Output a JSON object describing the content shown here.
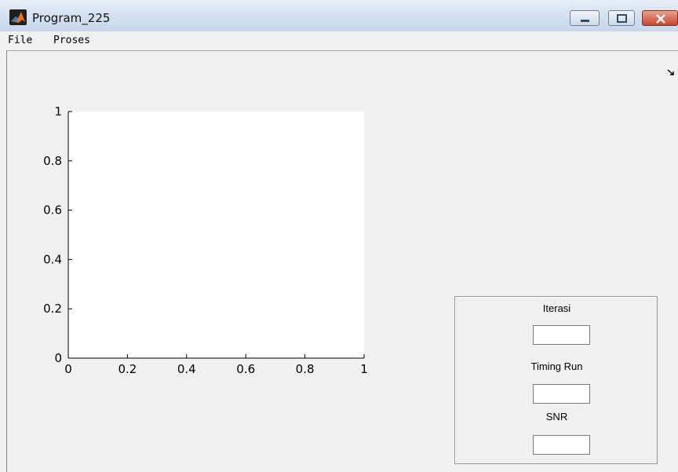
{
  "window": {
    "title": "Program_225"
  },
  "menu": {
    "items": [
      "File",
      "Proses"
    ]
  },
  "axes": {
    "x_ticks": [
      "0",
      "0.2",
      "0.4",
      "0.6",
      "0.8",
      "1"
    ],
    "y_ticks": [
      "0",
      "0.2",
      "0.4",
      "0.6",
      "0.8",
      "1"
    ]
  },
  "panel": {
    "iterasi_label": "Iterasi",
    "iterasi_value": "",
    "timing_label": "Timing Run",
    "timing_value": "",
    "snr_label": "SNR",
    "snr_value": ""
  },
  "colors": {
    "window_bg": "#f0f0f0",
    "axes_bg": "#ffffff",
    "close_button": "#c8452c"
  },
  "icons": {
    "app": "matlab-logo-icon",
    "dock": "dock-arrow-icon"
  }
}
